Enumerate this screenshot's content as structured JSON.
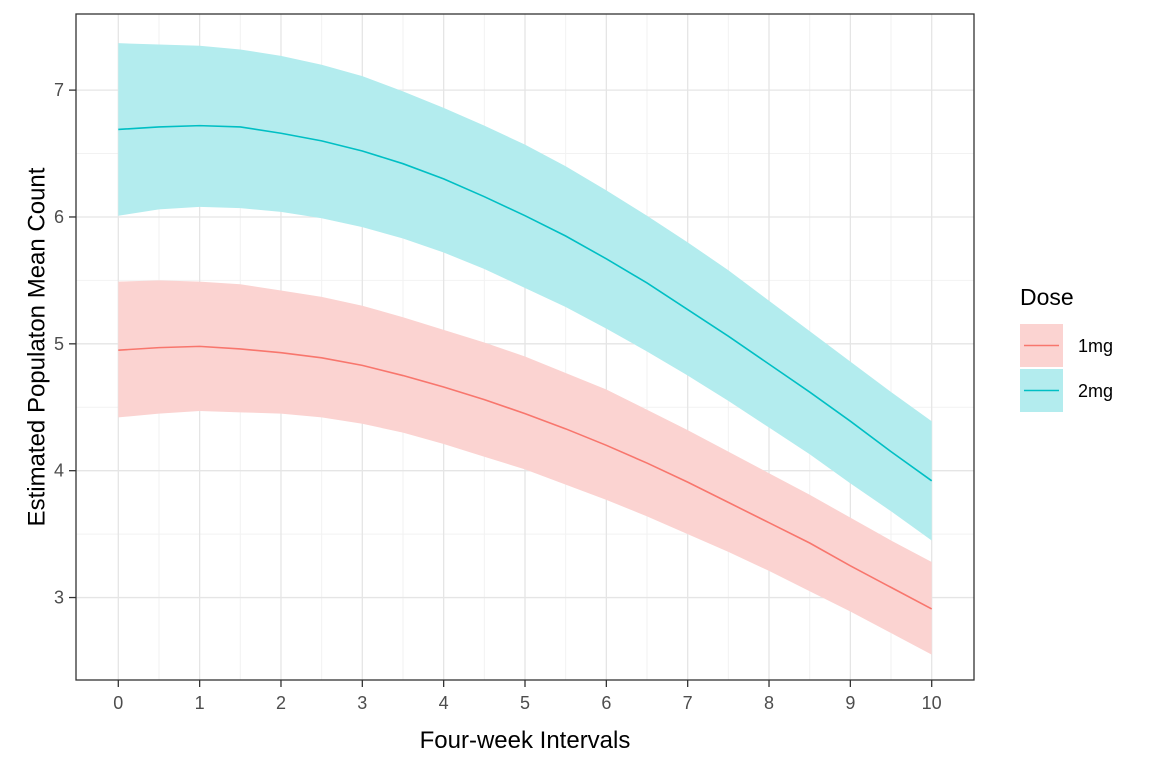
{
  "chart_data": {
    "type": "line",
    "xlabel": "Four-week Intervals",
    "ylabel": "Estimated Populaton Mean Count",
    "xlim": [
      -0.52,
      10.52
    ],
    "ylim": [
      2.35,
      7.6
    ],
    "x_ticks": [
      0,
      1,
      2,
      3,
      4,
      5,
      6,
      7,
      8,
      9,
      10
    ],
    "y_ticks": [
      3,
      4,
      5,
      6,
      7
    ],
    "grid": true,
    "legend": {
      "title": "Dose",
      "position": "right"
    },
    "x": [
      0,
      0.5,
      1,
      1.5,
      2,
      2.5,
      3,
      3.5,
      4,
      4.5,
      5,
      5.5,
      6,
      6.5,
      7,
      7.5,
      8,
      8.5,
      9,
      9.5,
      10
    ],
    "series": [
      {
        "name": "1mg",
        "color": "#F8766D",
        "fill": "#FBD3D1",
        "values": [
          4.95,
          4.97,
          4.98,
          4.96,
          4.93,
          4.89,
          4.83,
          4.75,
          4.66,
          4.56,
          4.45,
          4.33,
          4.2,
          4.06,
          3.91,
          3.75,
          3.59,
          3.43,
          3.25,
          3.08,
          2.91
        ],
        "lower": [
          4.42,
          4.45,
          4.47,
          4.46,
          4.45,
          4.42,
          4.37,
          4.3,
          4.21,
          4.11,
          4.01,
          3.89,
          3.77,
          3.64,
          3.5,
          3.36,
          3.21,
          3.05,
          2.89,
          2.72,
          2.55
        ],
        "upper": [
          5.49,
          5.5,
          5.49,
          5.47,
          5.42,
          5.37,
          5.3,
          5.21,
          5.11,
          5.01,
          4.9,
          4.77,
          4.64,
          4.48,
          4.32,
          4.15,
          3.98,
          3.81,
          3.63,
          3.45,
          3.28
        ]
      },
      {
        "name": "2mg",
        "color": "#00BFC4",
        "fill": "#B3ECEE",
        "values": [
          6.69,
          6.71,
          6.72,
          6.71,
          6.66,
          6.6,
          6.52,
          6.42,
          6.3,
          6.16,
          6.01,
          5.85,
          5.67,
          5.48,
          5.27,
          5.06,
          4.84,
          4.62,
          4.39,
          4.15,
          3.92
        ],
        "lower": [
          6.01,
          6.06,
          6.08,
          6.07,
          6.04,
          5.99,
          5.92,
          5.83,
          5.72,
          5.59,
          5.44,
          5.29,
          5.12,
          4.94,
          4.75,
          4.55,
          4.34,
          4.13,
          3.9,
          3.68,
          3.45
        ],
        "upper": [
          7.37,
          7.36,
          7.35,
          7.32,
          7.27,
          7.2,
          7.11,
          6.99,
          6.86,
          6.72,
          6.57,
          6.4,
          6.21,
          6.01,
          5.8,
          5.58,
          5.34,
          5.1,
          4.86,
          4.62,
          4.39
        ]
      }
    ]
  }
}
